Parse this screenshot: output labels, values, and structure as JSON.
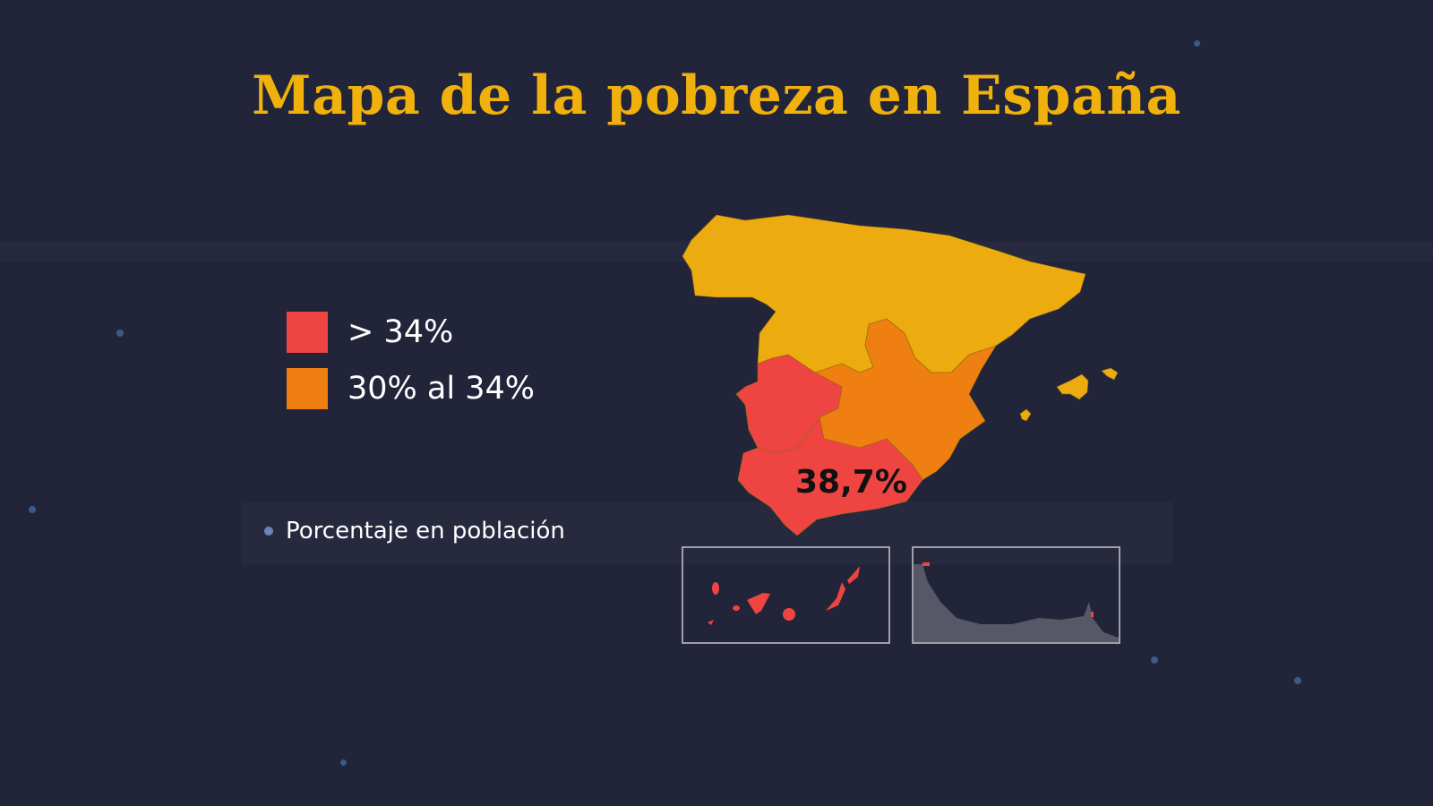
{
  "title": "Mapa de la pobreza en España",
  "legend": [
    {
      "label": "> 34%",
      "color": "#ef4542"
    },
    {
      "label": "30% al 34%",
      "color": "#ee7f10"
    }
  ],
  "other_regions_color": "#ecab0f",
  "note": "Porcentaje en población",
  "map": {
    "highlight_label": "38,7%",
    "highlight_region": "Andalucía",
    "regions": [
      {
        "name": "Andalucía",
        "category": "> 34%"
      },
      {
        "name": "Extremadura",
        "category": "> 34%"
      },
      {
        "name": "Canarias",
        "category": "> 34%"
      },
      {
        "name": "Castilla-La Mancha",
        "category": "30% al 34%"
      },
      {
        "name": "Comunidad Valenciana",
        "category": "30% al 34%"
      },
      {
        "name": "Murcia",
        "category": "30% al 34%"
      }
    ]
  }
}
